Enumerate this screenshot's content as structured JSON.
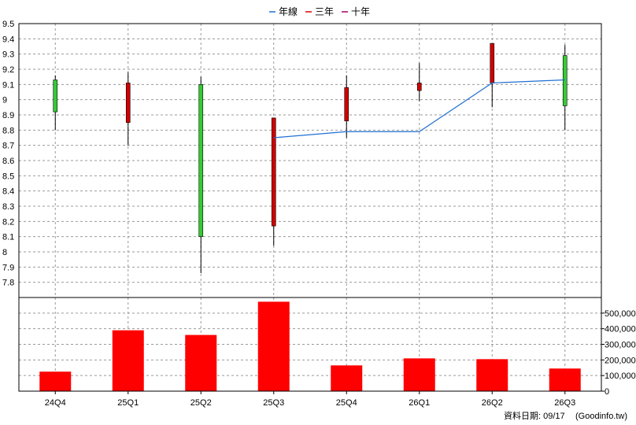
{
  "legend": [
    {
      "label": "年線",
      "color": "#1f6fd1"
    },
    {
      "label": "三年",
      "color": "#e00000"
    },
    {
      "label": "十年",
      "color": "#a00060"
    }
  ],
  "footer": {
    "date_label": "資料日期: 09/17",
    "source_label": "(Goodinfo.tw)"
  },
  "colors": {
    "up": "#d00000",
    "down": "#33cc33",
    "wick": "#000000",
    "volume": "#ff0000",
    "grid": "#999999",
    "line": "#1f6fd1"
  },
  "chart_data": [
    {
      "type": "candlestick",
      "categories": [
        "24Q4",
        "25Q1",
        "25Q2",
        "25Q3",
        "25Q4",
        "26Q1",
        "26Q2",
        "26Q3"
      ],
      "ylim": [
        7.7,
        9.5
      ],
      "yticks": [
        "7.8",
        "7.9",
        "8",
        "8.1",
        "8.2",
        "8.3",
        "8.4",
        "8.5",
        "8.6",
        "8.7",
        "8.8",
        "8.9",
        "9",
        "9.1",
        "9.2",
        "9.3",
        "9.4",
        "9.5"
      ],
      "candles": [
        {
          "open": 9.13,
          "close": 8.92,
          "high": 9.16,
          "low": 8.8
        },
        {
          "open": 8.85,
          "close": 9.11,
          "high": 9.18,
          "low": 8.7
        },
        {
          "open": 9.1,
          "close": 8.1,
          "high": 9.15,
          "low": 7.86
        },
        {
          "open": 8.17,
          "close": 8.88,
          "high": 8.88,
          "low": 8.04
        },
        {
          "open": 8.86,
          "close": 9.08,
          "high": 9.16,
          "low": 8.75
        },
        {
          "open": 9.06,
          "close": 9.11,
          "high": 9.24,
          "low": 8.99
        },
        {
          "open": 9.11,
          "close": 9.37,
          "high": 9.37,
          "low": 8.95
        },
        {
          "open": 9.29,
          "close": 8.96,
          "high": 9.36,
          "low": 8.8
        }
      ],
      "series": [
        {
          "name": "年線",
          "values": [
            null,
            null,
            null,
            8.75,
            8.79,
            8.79,
            9.11,
            9.13
          ]
        }
      ]
    },
    {
      "type": "bar",
      "categories": [
        "24Q4",
        "25Q1",
        "25Q2",
        "25Q3",
        "25Q4",
        "26Q1",
        "26Q2",
        "26Q3"
      ],
      "values": [
        125000,
        390000,
        360000,
        573000,
        165000,
        210000,
        205000,
        145000
      ],
      "ylim": [
        0,
        600000
      ],
      "yticks": [
        "0",
        "100,000",
        "200,000",
        "300,000",
        "400,000",
        "500,000"
      ]
    }
  ]
}
